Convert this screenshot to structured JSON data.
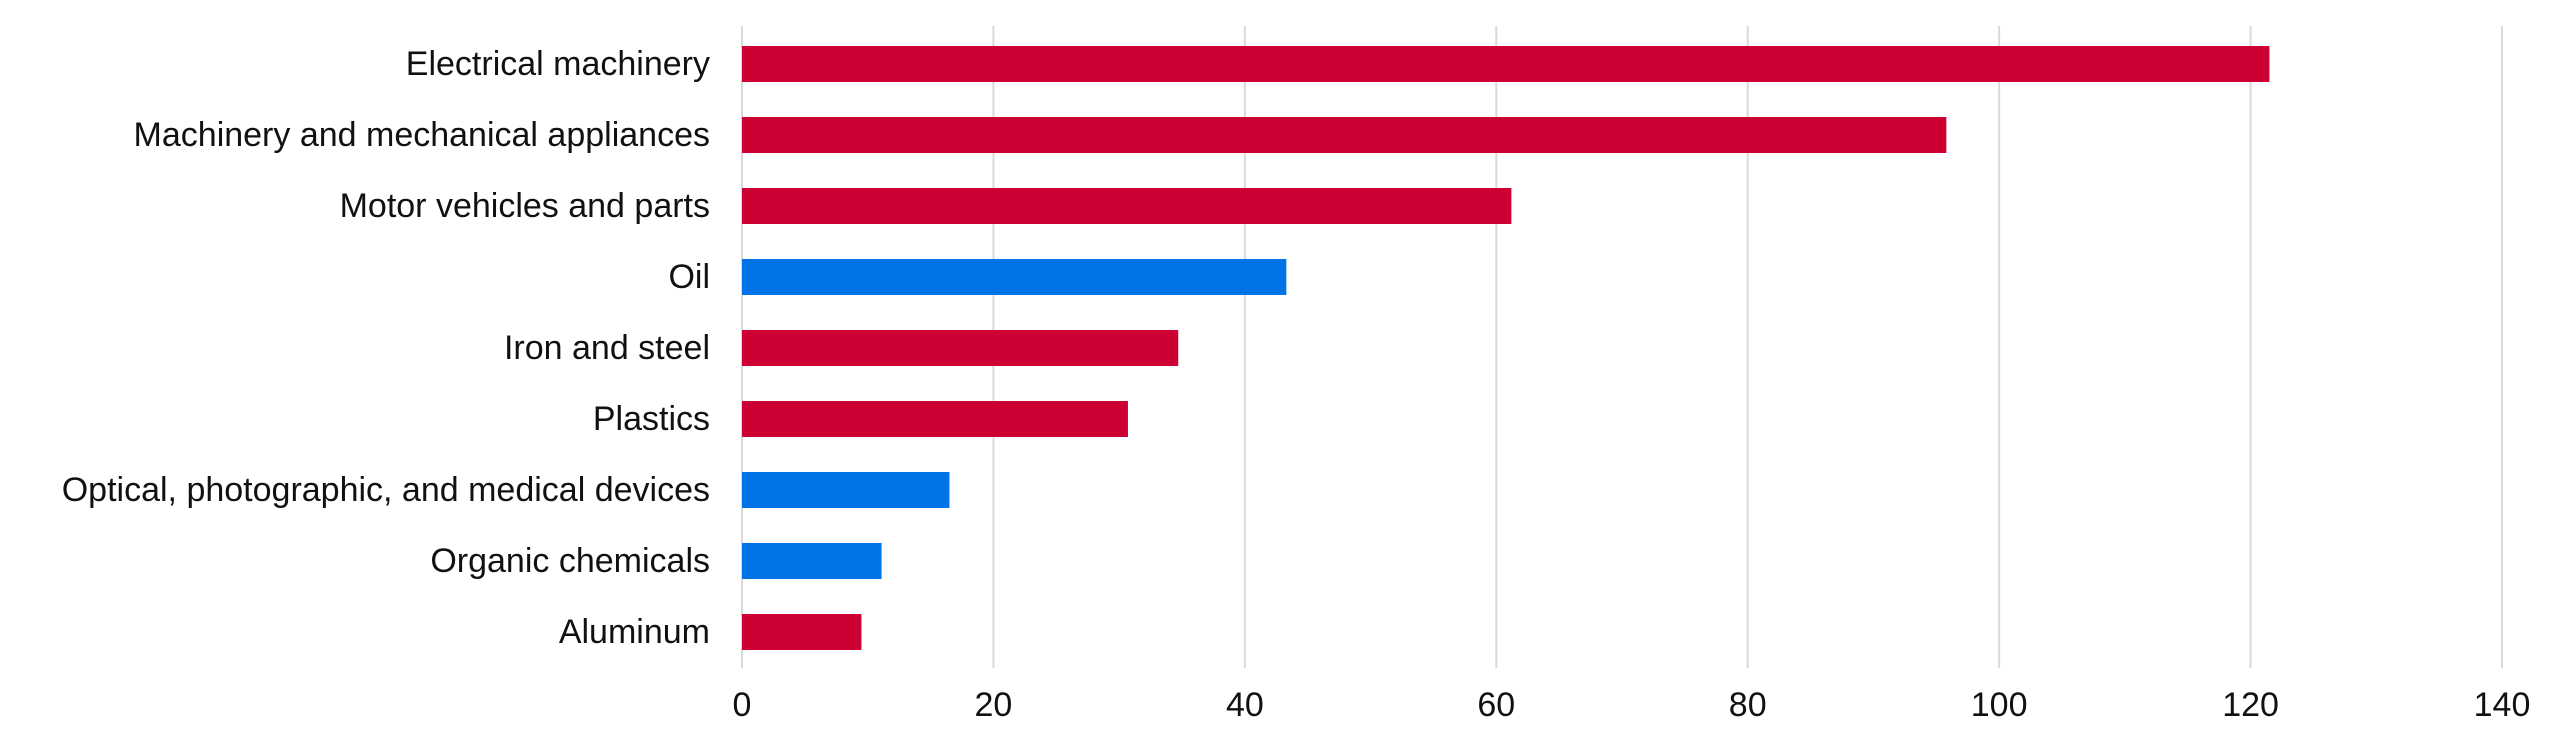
{
  "chart_data": {
    "type": "bar",
    "orientation": "horizontal",
    "categories": [
      "Electrical machinery",
      "Machinery and mechanical appliances",
      "Motor vehicles and parts ",
      "Oil",
      "Iron and steel",
      "Plastics",
      "Optical, photographic, and medical devices",
      "Organic chemicals",
      "Aluminum"
    ],
    "values": [
      121.5,
      95.8,
      61.2,
      43.3,
      34.7,
      30.7,
      16.5,
      11.1,
      9.5
    ],
    "bar_colors": [
      "#cc0033",
      "#cc0033",
      "#cc0033",
      "#0073e6",
      "#cc0033",
      "#cc0033",
      "#0073e6",
      "#0073e6",
      "#cc0033"
    ],
    "title": "",
    "xlabel": "",
    "ylabel": "",
    "xlim": [
      0,
      140
    ],
    "x_ticks": [
      0,
      20,
      40,
      60,
      80,
      100,
      120,
      140
    ],
    "grid": "vertical",
    "legend": "none"
  }
}
